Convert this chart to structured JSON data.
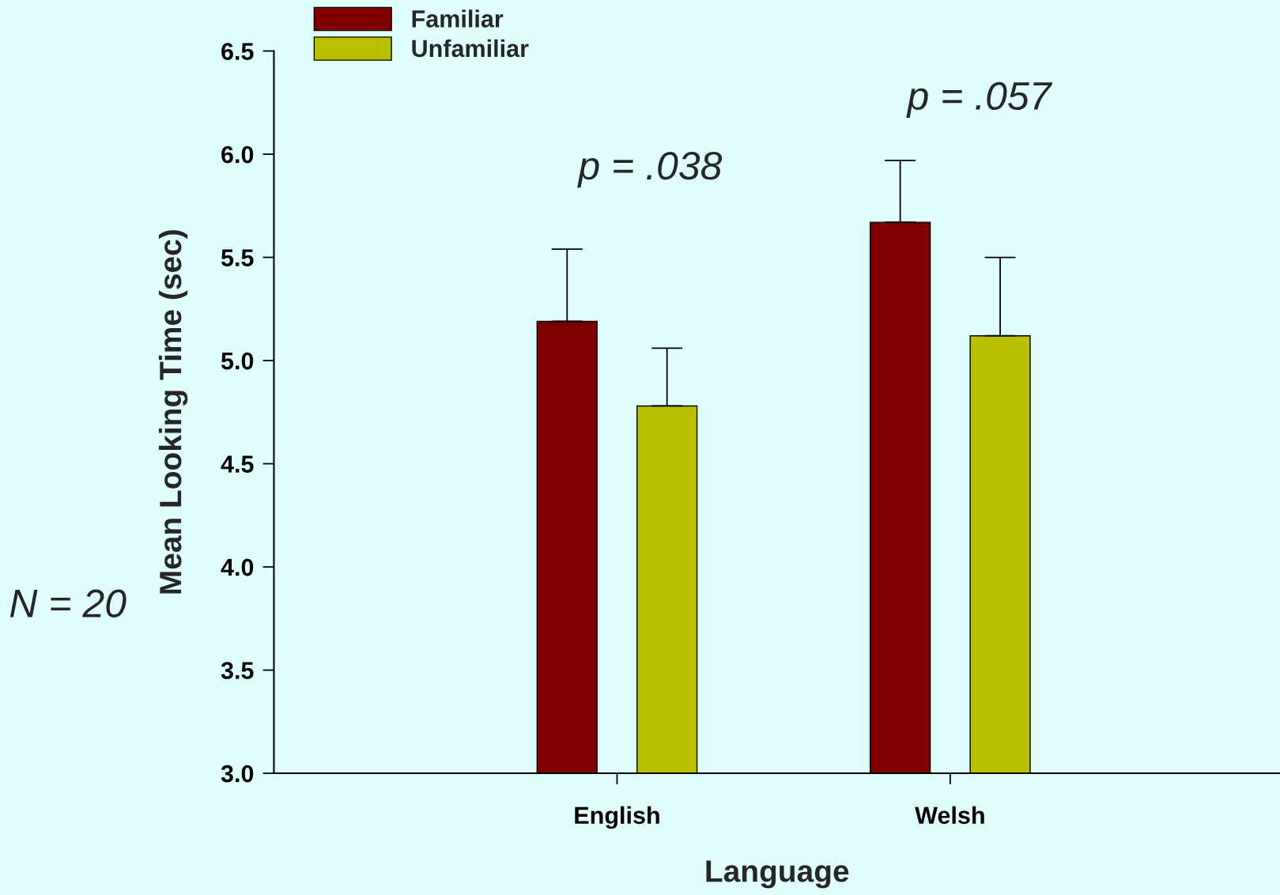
{
  "chart_data": {
    "type": "bar",
    "xlabel": "Language",
    "ylabel": "Mean Looking Time (sec)",
    "categories": [
      "English",
      "Welsh"
    ],
    "series": [
      {
        "name": "Familiar",
        "color": "#800000",
        "values": [
          5.19,
          5.67
        ],
        "errors": [
          [
            5.19,
            5.54
          ],
          [
            5.67,
            5.97
          ]
        ]
      },
      {
        "name": "Unfamiliar",
        "color": "#b8c000",
        "values": [
          4.78,
          5.12
        ],
        "errors": [
          [
            4.78,
            5.06
          ],
          [
            5.12,
            5.5
          ]
        ]
      }
    ],
    "ylim": [
      3.0,
      6.5
    ],
    "yticks": [
      {
        "value": 3.0,
        "label": "3.0"
      },
      {
        "value": 3.5,
        "label": "3.5"
      },
      {
        "value": 4.0,
        "label": "4.0"
      },
      {
        "value": 4.5,
        "label": "4.5"
      },
      {
        "value": 5.0,
        "label": "5.0"
      },
      {
        "value": 5.5,
        "label": "5.5"
      },
      {
        "value": 6.0,
        "label": "6.0"
      },
      {
        "value": 6.5,
        "label": "6.5"
      }
    ],
    "annotations": [
      "p = .038",
      "p = .057",
      "N = 20"
    ],
    "legend": "top left",
    "grid": false
  }
}
